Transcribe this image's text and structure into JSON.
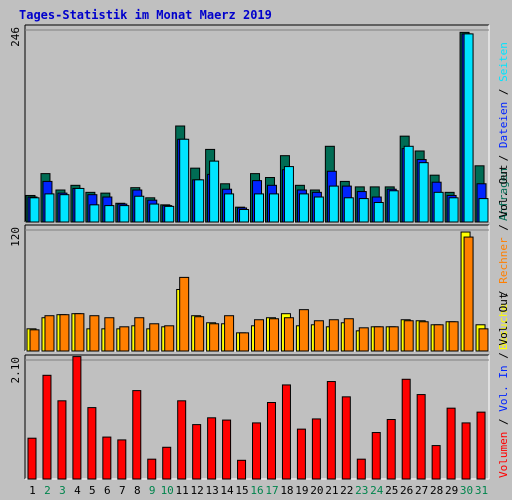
{
  "title": "Tages-Statistik im Monat Maerz 2019",
  "colors": {
    "background": "#c0c0c0",
    "title": "#0000cc",
    "anfragen": "#006c54",
    "dateien": "#0024ff",
    "seiten": "#00e4ff",
    "besuche": "#ffff00",
    "rechner": "#ff7f00",
    "volumen": "#ff0000",
    "separator": "#000000",
    "weekend_day": "#00844c",
    "weekday_day": "#000000",
    "grid": "#808080"
  },
  "chart_data": [
    {
      "type": "bar",
      "panel": "top",
      "axis_max_label": "246",
      "ylim": [
        0,
        246
      ],
      "side_label_parts": [
        {
          "text": "Anfragen",
          "color_key": "anfragen"
        },
        {
          "text": " / ",
          "color_key": "separator"
        },
        {
          "text": "Dateien",
          "color_key": "dateien"
        },
        {
          "text": " / ",
          "color_key": "separator"
        },
        {
          "text": "Seiten",
          "color_key": "seiten"
        }
      ],
      "categories": [
        "1",
        "2",
        "3",
        "4",
        "5",
        "6",
        "7",
        "8",
        "9",
        "10",
        "11",
        "12",
        "13",
        "14",
        "15",
        "16",
        "17",
        "18",
        "19",
        "20",
        "21",
        "22",
        "23",
        "24",
        "25",
        "26",
        "27",
        "28",
        "29",
        "30",
        "31"
      ],
      "series": [
        {
          "name": "Anfragen",
          "color_key": "anfragen",
          "values": [
            34,
            62,
            41,
            47,
            38,
            37,
            24,
            44,
            31,
            22,
            123,
            69,
            93,
            49,
            19,
            62,
            57,
            85,
            47,
            41,
            97,
            52,
            45,
            45,
            45,
            110,
            91,
            60,
            38,
            243,
            72
          ]
        },
        {
          "name": "Dateien",
          "color_key": "dateien",
          "values": [
            32,
            52,
            37,
            43,
            35,
            32,
            23,
            41,
            28,
            21,
            106,
            54,
            61,
            42,
            18,
            53,
            47,
            67,
            41,
            38,
            65,
            46,
            39,
            32,
            42,
            94,
            80,
            51,
            34,
            241,
            49
          ]
        },
        {
          "name": "Seiten",
          "color_key": "seiten",
          "values": [
            31,
            36,
            35,
            43,
            22,
            21,
            21,
            33,
            23,
            20,
            106,
            54,
            78,
            36,
            16,
            36,
            36,
            71,
            36,
            32,
            46,
            31,
            30,
            25,
            40,
            97,
            76,
            38,
            31,
            241,
            30
          ]
        }
      ]
    },
    {
      "type": "bar",
      "panel": "middle",
      "axis_max_label": "120",
      "ylim": [
        0,
        120
      ],
      "side_label_parts": [
        {
          "text": "Besuche",
          "color_key": "besuche"
        },
        {
          "text": " / ",
          "color_key": "separator"
        },
        {
          "text": "Rechner",
          "color_key": "rechner"
        },
        {
          "text": " / ",
          "color_key": "separator"
        },
        {
          "text": "Vol. Out",
          "color_key": "separator"
        }
      ],
      "categories": [
        "1",
        "2",
        "3",
        "4",
        "5",
        "6",
        "7",
        "8",
        "9",
        "10",
        "11",
        "12",
        "13",
        "14",
        "15",
        "16",
        "17",
        "18",
        "19",
        "20",
        "21",
        "22",
        "23",
        "24",
        "25",
        "26",
        "27",
        "28",
        "29",
        "30",
        "31"
      ],
      "series": [
        {
          "name": "Besuche",
          "color_key": "besuche",
          "values": [
            22,
            33,
            36,
            37,
            22,
            22,
            22,
            25,
            22,
            24,
            61,
            35,
            28,
            27,
            18,
            25,
            33,
            37,
            25,
            26,
            24,
            28,
            20,
            24,
            24,
            31,
            30,
            26,
            29,
            118,
            26
          ]
        },
        {
          "name": "Rechner",
          "color_key": "rechner",
          "values": [
            21,
            35,
            36,
            37,
            35,
            33,
            24,
            33,
            27,
            25,
            73,
            34,
            27,
            35,
            18,
            31,
            32,
            33,
            41,
            30,
            31,
            32,
            23,
            24,
            24,
            30,
            29,
            26,
            29,
            113,
            22
          ]
        }
      ]
    },
    {
      "type": "bar",
      "panel": "bottom",
      "axis_max_label": "2.10",
      "ylim": [
        0,
        2.1
      ],
      "side_label_parts": [
        {
          "text": "Volumen",
          "color_key": "volumen"
        },
        {
          "text": " / ",
          "color_key": "separator"
        },
        {
          "text": "Vol. In",
          "color_key": "dateien"
        },
        {
          "text": " / ",
          "color_key": "separator"
        },
        {
          "text": "Vol. Out",
          "color_key": "separator"
        }
      ],
      "categories": [
        "1",
        "2",
        "3",
        "4",
        "5",
        "6",
        "7",
        "8",
        "9",
        "10",
        "11",
        "12",
        "13",
        "14",
        "15",
        "16",
        "17",
        "18",
        "19",
        "20",
        "21",
        "22",
        "23",
        "24",
        "25",
        "26",
        "27",
        "28",
        "29",
        "30",
        "31"
      ],
      "series": [
        {
          "name": "Volumen",
          "color_key": "volumen",
          "values": [
            0.72,
            1.83,
            1.38,
            2.16,
            1.26,
            0.74,
            0.69,
            1.56,
            0.35,
            0.56,
            1.38,
            0.96,
            1.08,
            1.04,
            0.33,
            0.99,
            1.35,
            1.66,
            0.88,
            1.06,
            1.72,
            1.45,
            0.35,
            0.82,
            1.05,
            1.76,
            1.49,
            0.59,
            1.25,
            0.99,
            1.18
          ]
        }
      ]
    }
  ],
  "day_labels": [
    {
      "text": "1",
      "weekend": false
    },
    {
      "text": "2",
      "weekend": true
    },
    {
      "text": "3",
      "weekend": true
    },
    {
      "text": "4",
      "weekend": false
    },
    {
      "text": "5",
      "weekend": false
    },
    {
      "text": "6",
      "weekend": false
    },
    {
      "text": "7",
      "weekend": false
    },
    {
      "text": "8",
      "weekend": false
    },
    {
      "text": "9",
      "weekend": true
    },
    {
      "text": "10",
      "weekend": true
    },
    {
      "text": "11",
      "weekend": false
    },
    {
      "text": "12",
      "weekend": false
    },
    {
      "text": "13",
      "weekend": false
    },
    {
      "text": "14",
      "weekend": false
    },
    {
      "text": "15",
      "weekend": false
    },
    {
      "text": "16",
      "weekend": true
    },
    {
      "text": "17",
      "weekend": true
    },
    {
      "text": "18",
      "weekend": false
    },
    {
      "text": "19",
      "weekend": false
    },
    {
      "text": "20",
      "weekend": false
    },
    {
      "text": "21",
      "weekend": false
    },
    {
      "text": "22",
      "weekend": false
    },
    {
      "text": "23",
      "weekend": true
    },
    {
      "text": "24",
      "weekend": true
    },
    {
      "text": "25",
      "weekend": false
    },
    {
      "text": "26",
      "weekend": false
    },
    {
      "text": "27",
      "weekend": false
    },
    {
      "text": "28",
      "weekend": false
    },
    {
      "text": "29",
      "weekend": false
    },
    {
      "text": "30",
      "weekend": true
    },
    {
      "text": "31",
      "weekend": true
    }
  ]
}
